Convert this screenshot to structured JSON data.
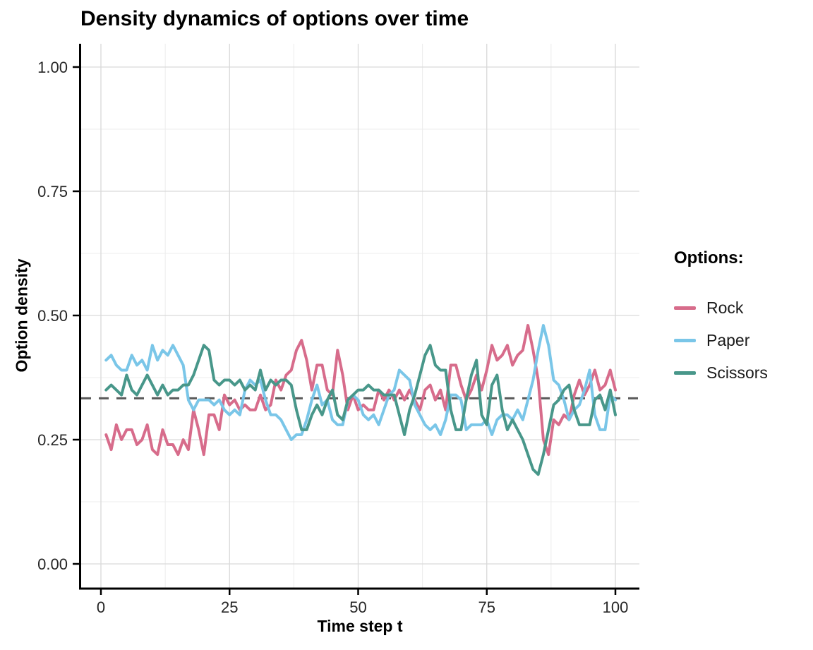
{
  "title": "Density dynamics of options over time",
  "axes": {
    "x": {
      "title": "Time step t",
      "tick_labels": [
        "0",
        "25",
        "50",
        "75",
        "100"
      ],
      "tick_values": [
        0,
        25,
        50,
        75,
        100
      ],
      "minor_ticks": [
        12.5,
        37.5,
        62.5,
        87.5
      ],
      "range": [
        0,
        100
      ]
    },
    "y": {
      "title": "Option density",
      "tick_labels": [
        "0.00",
        "0.25",
        "0.50",
        "0.75",
        "1.00"
      ],
      "tick_values": [
        0,
        0.25,
        0.5,
        0.75,
        1.0
      ],
      "minor_ticks": [
        0.125,
        0.375,
        0.625,
        0.875
      ],
      "range": [
        0,
        1
      ]
    }
  },
  "legend": {
    "title": "Options:",
    "items": [
      {
        "label": "Rock",
        "color": "#D76C8B"
      },
      {
        "label": "Paper",
        "color": "#7AC6E8"
      },
      {
        "label": "Scissors",
        "color": "#48978A"
      }
    ]
  },
  "reference_line": {
    "value": 0.3333,
    "color": "#595959",
    "style": "dashed"
  },
  "style": {
    "grid_major": "#D9D9D9",
    "grid_minor": "#ECECEC",
    "axis_line": "#000000",
    "tick_text": "#262626",
    "background": "#ffffff",
    "line_width": 4
  },
  "chart_data": {
    "type": "line",
    "title": "Density dynamics of options over time",
    "xlabel": "Time step t",
    "ylabel": "Option density",
    "xlim": [
      0,
      100
    ],
    "ylim": [
      0,
      1
    ],
    "grid": true,
    "legend_position": "right",
    "reference_line_y": 0.3333,
    "x": [
      1,
      2,
      3,
      4,
      5,
      6,
      7,
      8,
      9,
      10,
      11,
      12,
      13,
      14,
      15,
      16,
      17,
      18,
      19,
      20,
      21,
      22,
      23,
      24,
      25,
      26,
      27,
      28,
      29,
      30,
      31,
      32,
      33,
      34,
      35,
      36,
      37,
      38,
      39,
      40,
      41,
      42,
      43,
      44,
      45,
      46,
      47,
      48,
      49,
      50,
      51,
      52,
      53,
      54,
      55,
      56,
      57,
      58,
      59,
      60,
      61,
      62,
      63,
      64,
      65,
      66,
      67,
      68,
      69,
      70,
      71,
      72,
      73,
      74,
      75,
      76,
      77,
      78,
      79,
      80,
      81,
      82,
      83,
      84,
      85,
      86,
      87,
      88,
      89,
      90,
      91,
      92,
      93,
      94,
      95,
      96,
      97,
      98,
      99,
      100
    ],
    "series": [
      {
        "name": "Rock",
        "color": "#D76C8B",
        "values": [
          0.26,
          0.23,
          0.28,
          0.25,
          0.27,
          0.27,
          0.24,
          0.25,
          0.28,
          0.23,
          0.22,
          0.27,
          0.24,
          0.24,
          0.22,
          0.25,
          0.23,
          0.31,
          0.27,
          0.22,
          0.3,
          0.3,
          0.27,
          0.34,
          0.32,
          0.33,
          0.31,
          0.32,
          0.31,
          0.31,
          0.34,
          0.31,
          0.32,
          0.37,
          0.35,
          0.38,
          0.39,
          0.43,
          0.45,
          0.41,
          0.35,
          0.4,
          0.4,
          0.35,
          0.34,
          0.43,
          0.38,
          0.31,
          0.34,
          0.31,
          0.32,
          0.31,
          0.31,
          0.35,
          0.33,
          0.35,
          0.33,
          0.35,
          0.33,
          0.35,
          0.33,
          0.31,
          0.35,
          0.36,
          0.33,
          0.35,
          0.31,
          0.4,
          0.4,
          0.36,
          0.33,
          0.35,
          0.38,
          0.35,
          0.39,
          0.44,
          0.41,
          0.42,
          0.44,
          0.4,
          0.42,
          0.43,
          0.48,
          0.43,
          0.37,
          0.25,
          0.22,
          0.29,
          0.28,
          0.3,
          0.29,
          0.34,
          0.37,
          0.34,
          0.36,
          0.39,
          0.35,
          0.36,
          0.39,
          0.35
        ]
      },
      {
        "name": "Paper",
        "color": "#7AC6E8",
        "values": [
          0.41,
          0.42,
          0.4,
          0.39,
          0.39,
          0.42,
          0.4,
          0.41,
          0.39,
          0.44,
          0.41,
          0.43,
          0.42,
          0.44,
          0.42,
          0.4,
          0.33,
          0.31,
          0.33,
          0.33,
          0.33,
          0.32,
          0.33,
          0.31,
          0.3,
          0.31,
          0.3,
          0.35,
          0.37,
          0.36,
          0.37,
          0.33,
          0.3,
          0.3,
          0.29,
          0.27,
          0.25,
          0.26,
          0.26,
          0.29,
          0.33,
          0.36,
          0.32,
          0.33,
          0.29,
          0.28,
          0.28,
          0.33,
          0.34,
          0.33,
          0.3,
          0.29,
          0.3,
          0.28,
          0.31,
          0.34,
          0.35,
          0.39,
          0.38,
          0.37,
          0.32,
          0.3,
          0.28,
          0.27,
          0.28,
          0.26,
          0.29,
          0.34,
          0.34,
          0.33,
          0.27,
          0.28,
          0.28,
          0.28,
          0.29,
          0.26,
          0.29,
          0.3,
          0.3,
          0.29,
          0.31,
          0.29,
          0.33,
          0.37,
          0.43,
          0.48,
          0.44,
          0.37,
          0.36,
          0.33,
          0.29,
          0.31,
          0.32,
          0.35,
          0.39,
          0.3,
          0.27,
          0.27,
          0.34,
          0.33
        ]
      },
      {
        "name": "Scissors",
        "color": "#48978A",
        "values": [
          0.35,
          0.36,
          0.35,
          0.34,
          0.38,
          0.35,
          0.34,
          0.36,
          0.38,
          0.36,
          0.34,
          0.36,
          0.34,
          0.35,
          0.35,
          0.36,
          0.36,
          0.38,
          0.41,
          0.44,
          0.43,
          0.37,
          0.36,
          0.37,
          0.37,
          0.36,
          0.37,
          0.35,
          0.36,
          0.35,
          0.39,
          0.35,
          0.37,
          0.36,
          0.37,
          0.37,
          0.36,
          0.31,
          0.27,
          0.27,
          0.3,
          0.32,
          0.3,
          0.33,
          0.35,
          0.3,
          0.29,
          0.33,
          0.34,
          0.35,
          0.35,
          0.36,
          0.35,
          0.35,
          0.34,
          0.34,
          0.34,
          0.3,
          0.26,
          0.31,
          0.34,
          0.38,
          0.42,
          0.44,
          0.4,
          0.39,
          0.39,
          0.31,
          0.27,
          0.27,
          0.33,
          0.38,
          0.41,
          0.3,
          0.28,
          0.36,
          0.38,
          0.31,
          0.27,
          0.29,
          0.27,
          0.25,
          0.22,
          0.19,
          0.18,
          0.22,
          0.27,
          0.32,
          0.33,
          0.35,
          0.36,
          0.31,
          0.28,
          0.28,
          0.28,
          0.33,
          0.34,
          0.31,
          0.35,
          0.3
        ]
      }
    ]
  }
}
